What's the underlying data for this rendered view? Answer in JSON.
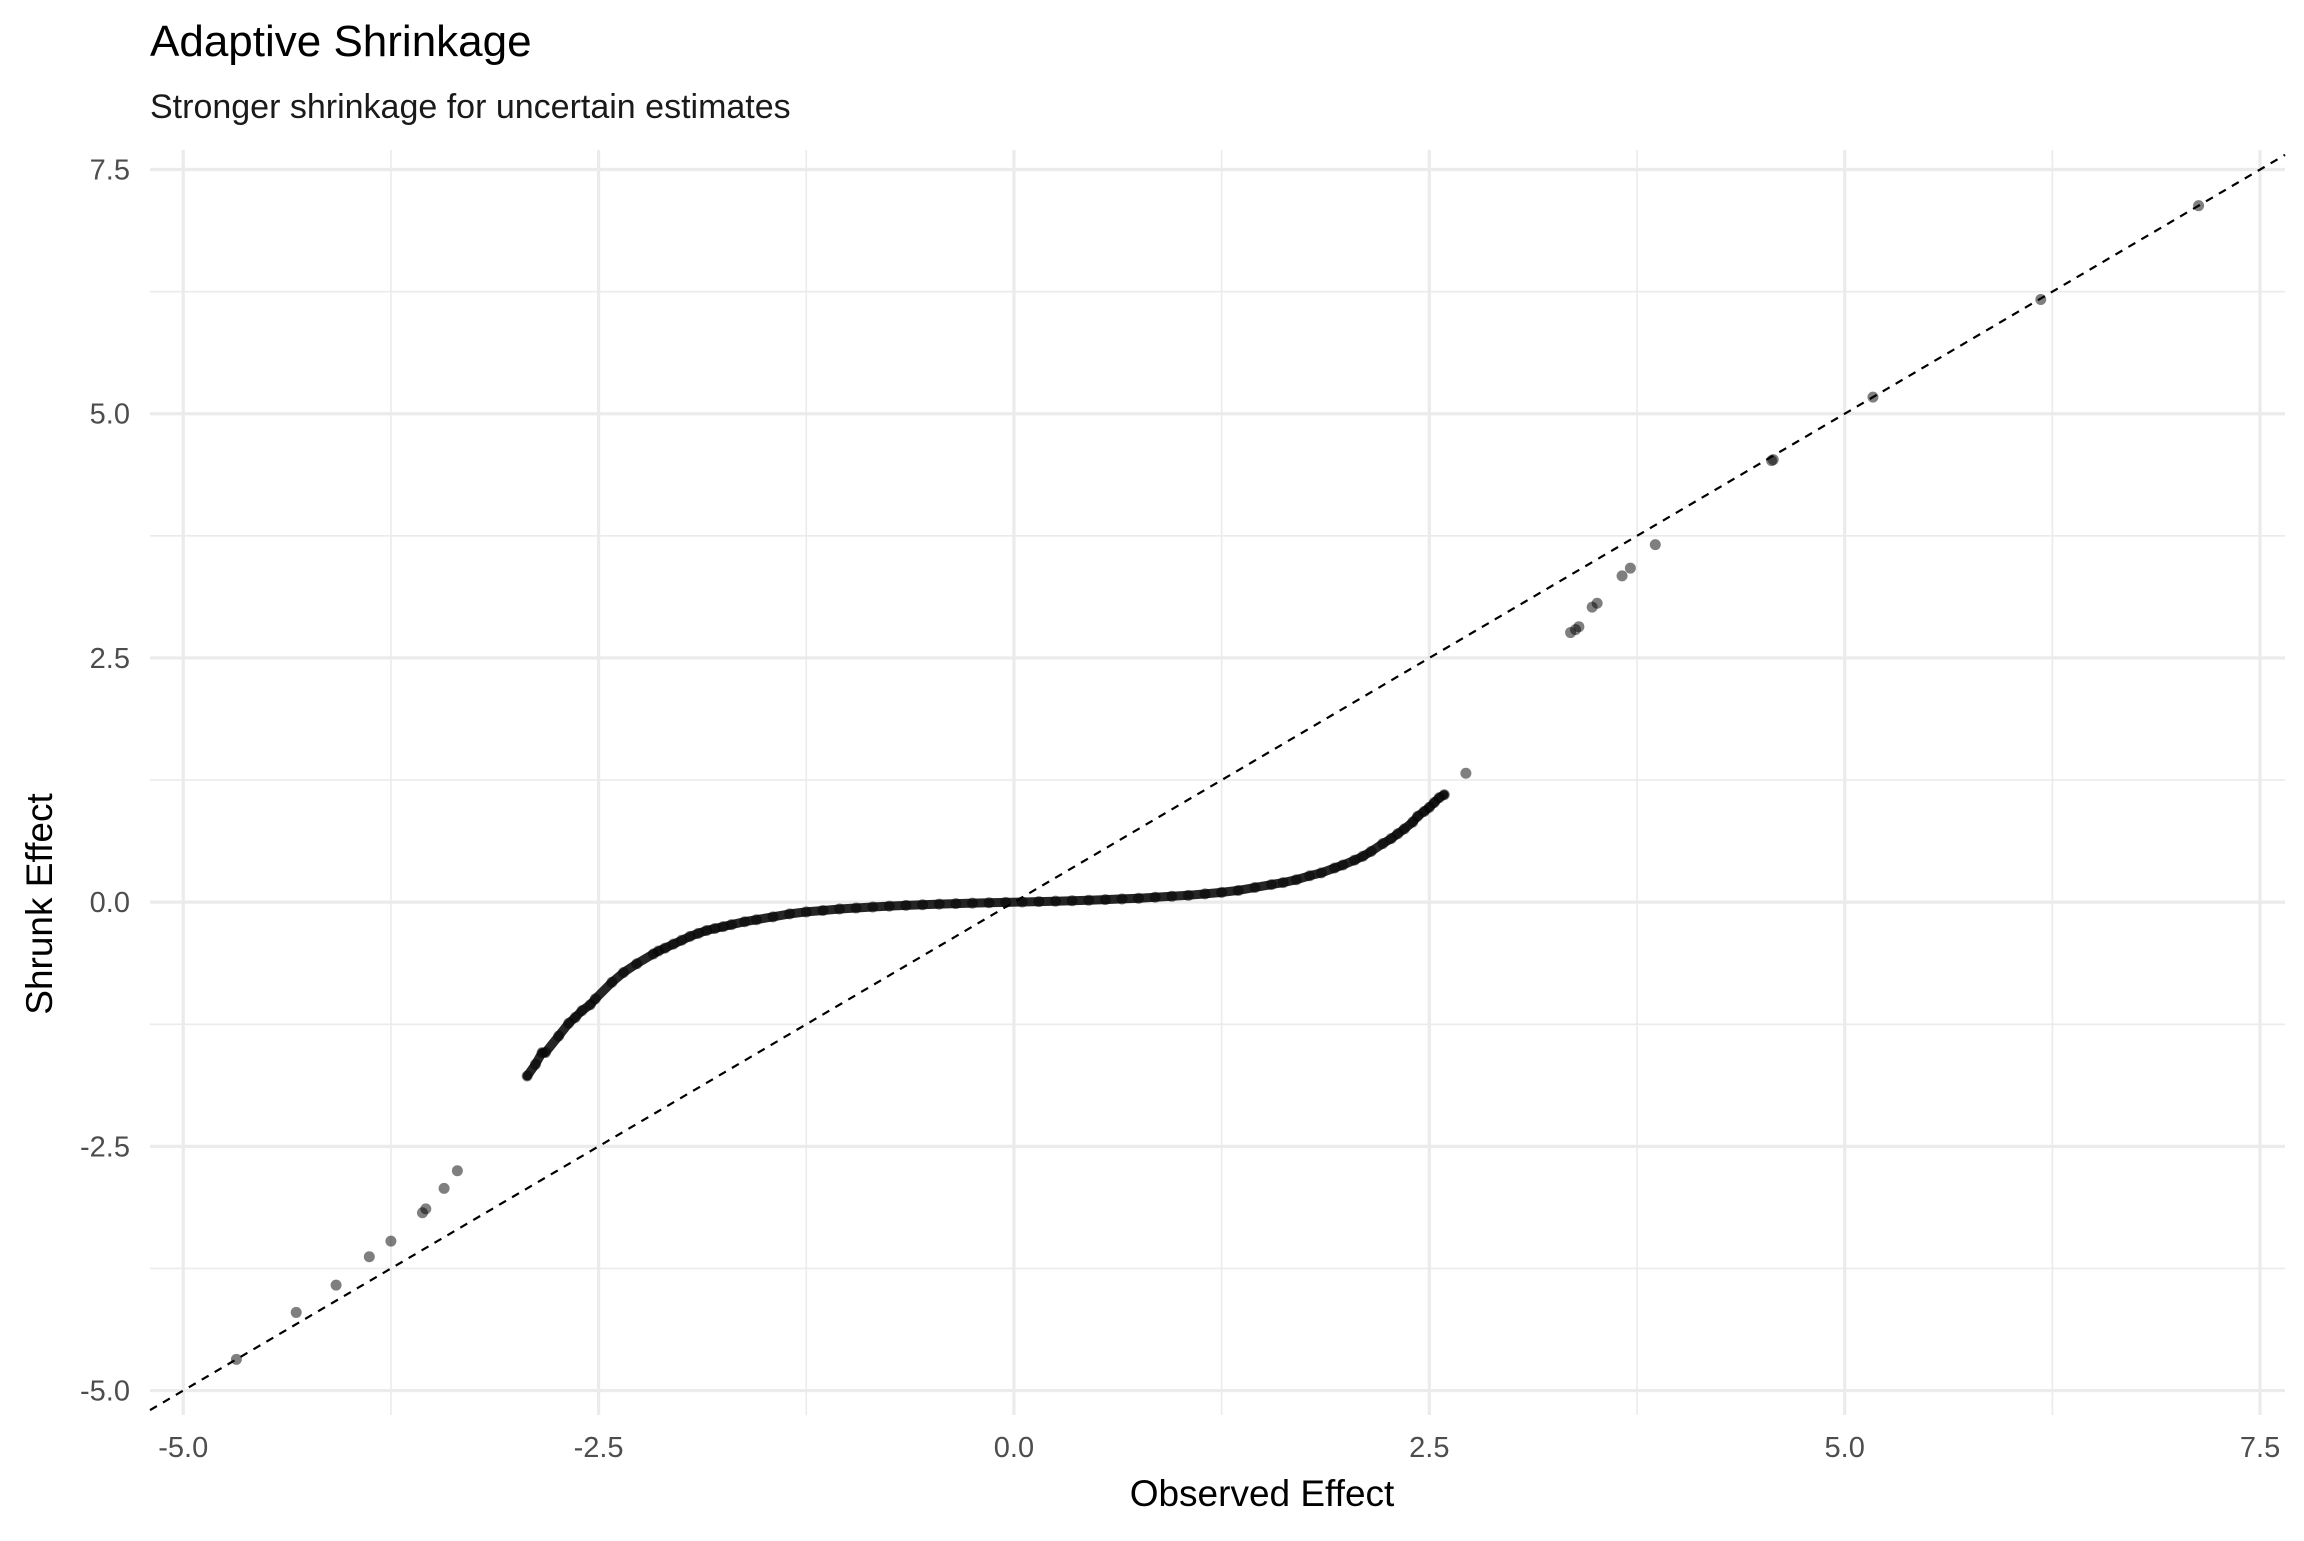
{
  "chart_data": {
    "type": "scatter",
    "title": "Adaptive Shrinkage",
    "subtitle": "Stronger shrinkage for uncertain estimates",
    "xlabel": "Observed Effect",
    "ylabel": "Shrunk Effect",
    "xlim": [
      -5.2,
      7.65
    ],
    "ylim": [
      -5.25,
      7.7
    ],
    "x_ticks": [
      -5.0,
      -2.5,
      0.0,
      2.5,
      5.0,
      7.5
    ],
    "y_ticks": [
      -5.0,
      -2.5,
      0.0,
      2.5,
      5.0,
      7.5
    ],
    "x_tick_labels": [
      "-5.0",
      "-2.5",
      "0.0",
      "2.5",
      "5.0",
      "7.5"
    ],
    "y_tick_labels": [
      "-5.0",
      "-2.5",
      "0.0",
      "2.5",
      "5.0",
      "7.5"
    ],
    "grid": true,
    "legend": "none",
    "reference_line": {
      "slope": 1,
      "intercept": 0,
      "style": "dashed",
      "color": "#000000"
    },
    "point_color": "#000000",
    "point_opacity": 0.5,
    "series": [
      {
        "x": [
          -4.68,
          -4.32,
          -4.08,
          -3.88,
          -3.75,
          -3.56,
          -3.54,
          -3.43,
          -3.35,
          -2.93,
          -2.88,
          -2.84,
          -2.82,
          -2.74,
          -2.68,
          -2.64,
          -2.6,
          -2.55,
          -2.52,
          -2.42,
          -2.35,
          -2.27,
          -2.17,
          -2.14,
          -2.1,
          -2.05,
          -2.0,
          -1.95,
          -1.9,
          -1.85,
          -1.8,
          -1.75,
          -1.7,
          -1.62,
          -1.55,
          -1.45,
          -1.35,
          -1.25,
          -1.15,
          -1.05,
          -0.95,
          -0.85,
          -0.75,
          -0.65,
          -0.55,
          -0.45,
          -0.35,
          -0.25,
          -0.15,
          -0.05,
          0.05,
          0.15,
          0.25,
          0.35,
          0.45,
          0.55,
          0.65,
          0.75,
          0.85,
          0.95,
          1.05,
          1.15,
          1.25,
          1.35,
          1.45,
          1.55,
          1.62,
          1.7,
          1.78,
          1.85,
          1.93,
          1.98,
          2.05,
          2.1,
          2.15,
          2.22,
          2.27,
          2.31,
          2.35,
          2.4,
          2.43,
          2.47,
          2.5,
          2.53,
          2.56,
          2.59,
          2.72,
          3.35,
          3.38,
          3.4,
          3.48,
          3.51,
          3.66,
          3.71,
          3.86,
          4.56,
          4.57,
          5.17,
          6.18,
          7.13
        ],
        "y": [
          -4.68,
          -4.2,
          -3.92,
          -3.63,
          -3.47,
          -3.18,
          -3.14,
          -2.93,
          -2.75,
          -1.78,
          -1.66,
          -1.54,
          -1.54,
          -1.37,
          -1.24,
          -1.18,
          -1.11,
          -1.05,
          -0.99,
          -0.82,
          -0.72,
          -0.63,
          -0.53,
          -0.5,
          -0.47,
          -0.43,
          -0.39,
          -0.35,
          -0.32,
          -0.29,
          -0.27,
          -0.25,
          -0.23,
          -0.2,
          -0.18,
          -0.15,
          -0.12,
          -0.1,
          -0.085,
          -0.07,
          -0.06,
          -0.05,
          -0.04,
          -0.033,
          -0.026,
          -0.02,
          -0.015,
          -0.01,
          -0.006,
          -0.002,
          0.002,
          0.006,
          0.01,
          0.015,
          0.02,
          0.026,
          0.033,
          0.04,
          0.05,
          0.06,
          0.07,
          0.085,
          0.1,
          0.12,
          0.15,
          0.18,
          0.2,
          0.23,
          0.27,
          0.3,
          0.35,
          0.38,
          0.43,
          0.47,
          0.52,
          0.6,
          0.65,
          0.7,
          0.75,
          0.82,
          0.88,
          0.93,
          0.97,
          1.02,
          1.07,
          1.1,
          1.32,
          2.76,
          2.79,
          2.82,
          3.02,
          3.06,
          3.34,
          3.42,
          3.66,
          4.52,
          4.53,
          5.17,
          6.17,
          7.13
        ]
      }
    ]
  }
}
